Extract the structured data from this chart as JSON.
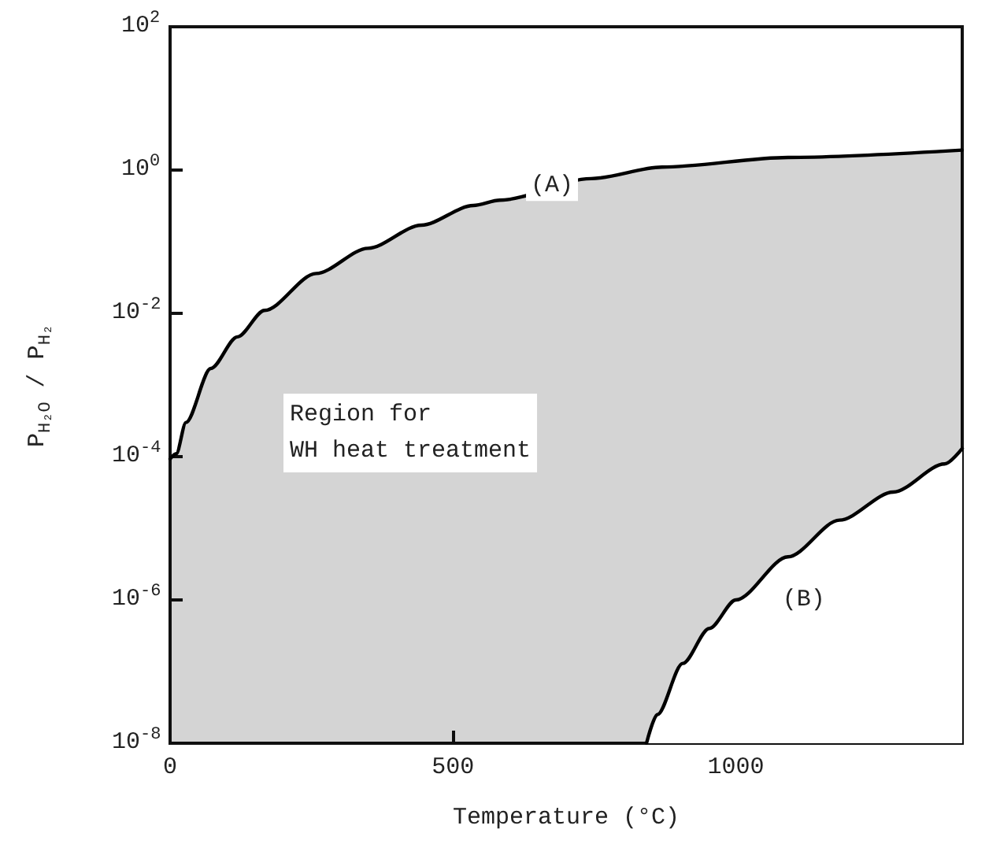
{
  "chart_data": {
    "type": "area",
    "xlabel": "Temperature (°C)",
    "ylabel": "P$_{H₂O}$ / P$_{H₂}$",
    "x": [
      0,
      11,
      28,
      72,
      119,
      167,
      258,
      350,
      444,
      536,
      583,
      744,
      869,
      1092,
      1400
    ],
    "series": [
      {
        "color": "#000000",
        "values": [
          9.3e-05,
          0.00011,
          0.0003,
          0.0017,
          0.0047,
          0.011,
          0.036,
          0.081,
          0.17,
          0.32,
          0.38,
          0.76,
          1.1,
          1.5,
          1.9
        ]
      },
      {
        "type": "line",
        "color": "#000000",
        "x": [
          842,
          861,
          906,
          953,
          1000,
          1092,
          1183,
          1278,
          1369,
          1400
        ],
        "values": [
          1e-08,
          2.5e-08,
          1.3e-07,
          4e-07,
          1e-06,
          4e-06,
          1.3e-05,
          3.2e-05,
          7.9e-05,
          0.00013
        ]
      }
    ],
    "xlim": [
      0,
      1400
    ],
    "xticks": [
      0,
      500,
      1000
    ],
    "ylim": [
      1e-08,
      100
    ],
    "yticks": [
      {
        "value": 1e-08,
        "label": "10$^{-8}$"
      },
      {
        "value": 1e-06,
        "label": "10$^{-6}$"
      },
      {
        "value": 0.0001,
        "label": "10$^{-4}$"
      },
      {
        "value": 0.01,
        "label": "10$^{-2}$"
      },
      {
        "value": 1,
        "label": "10$^{0}$"
      },
      {
        "value": 100,
        "label": "10$^{2}$"
      }
    ],
    "log": "y",
    "grid": false,
    "marker": "none",
    "line_style": "solid",
    "annotations": [
      {
        "text": "(A)",
        "x": 675,
        "y": 0.6
      },
      {
        "text": "(B)",
        "x": 1120,
        "y": 1e-06
      },
      "Region for\nWH heat treatment"
    ]
  }
}
